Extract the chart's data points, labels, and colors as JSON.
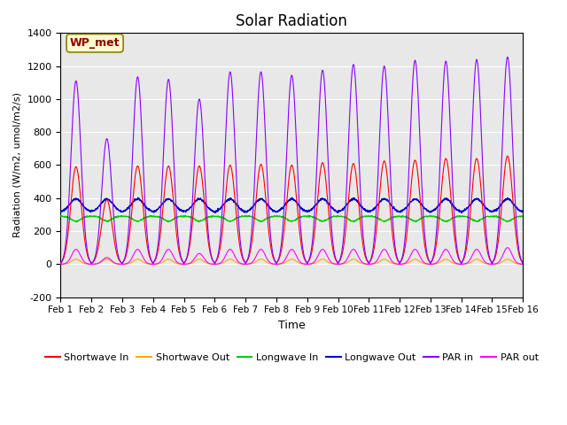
{
  "title": "Solar Radiation",
  "xlabel": "Time",
  "ylabel": "Radiation (W/m2, umol/m2/s)",
  "ylim": [
    -200,
    1400
  ],
  "yticks": [
    -200,
    0,
    200,
    400,
    600,
    800,
    1000,
    1200,
    1400
  ],
  "xtick_labels": [
    "Feb 1",
    "Feb 2",
    "Feb 3",
    "Feb 4",
    "Feb 5",
    "Feb 6",
    "Feb 7",
    "Feb 8",
    "Feb 9",
    "Feb 10",
    "Feb 11",
    "Feb 12",
    "Feb 13",
    "Feb 14",
    "Feb 15",
    "Feb 16"
  ],
  "annotation_text": "WP_met",
  "annotation_color": "#8B0000",
  "annotation_bg": "#FFFACD",
  "annotation_border": "#8B8000",
  "bg_color": "#E8E8E8",
  "legend": [
    {
      "label": "Shortwave In",
      "color": "#FF0000"
    },
    {
      "label": "Shortwave Out",
      "color": "#FFA500"
    },
    {
      "label": "Longwave In",
      "color": "#00CC00"
    },
    {
      "label": "Longwave Out",
      "color": "#0000CC"
    },
    {
      "label": "PAR in",
      "color": "#8B00FF"
    },
    {
      "label": "PAR out",
      "color": "#FF00FF"
    }
  ],
  "n_days": 15,
  "points_per_day": 144
}
